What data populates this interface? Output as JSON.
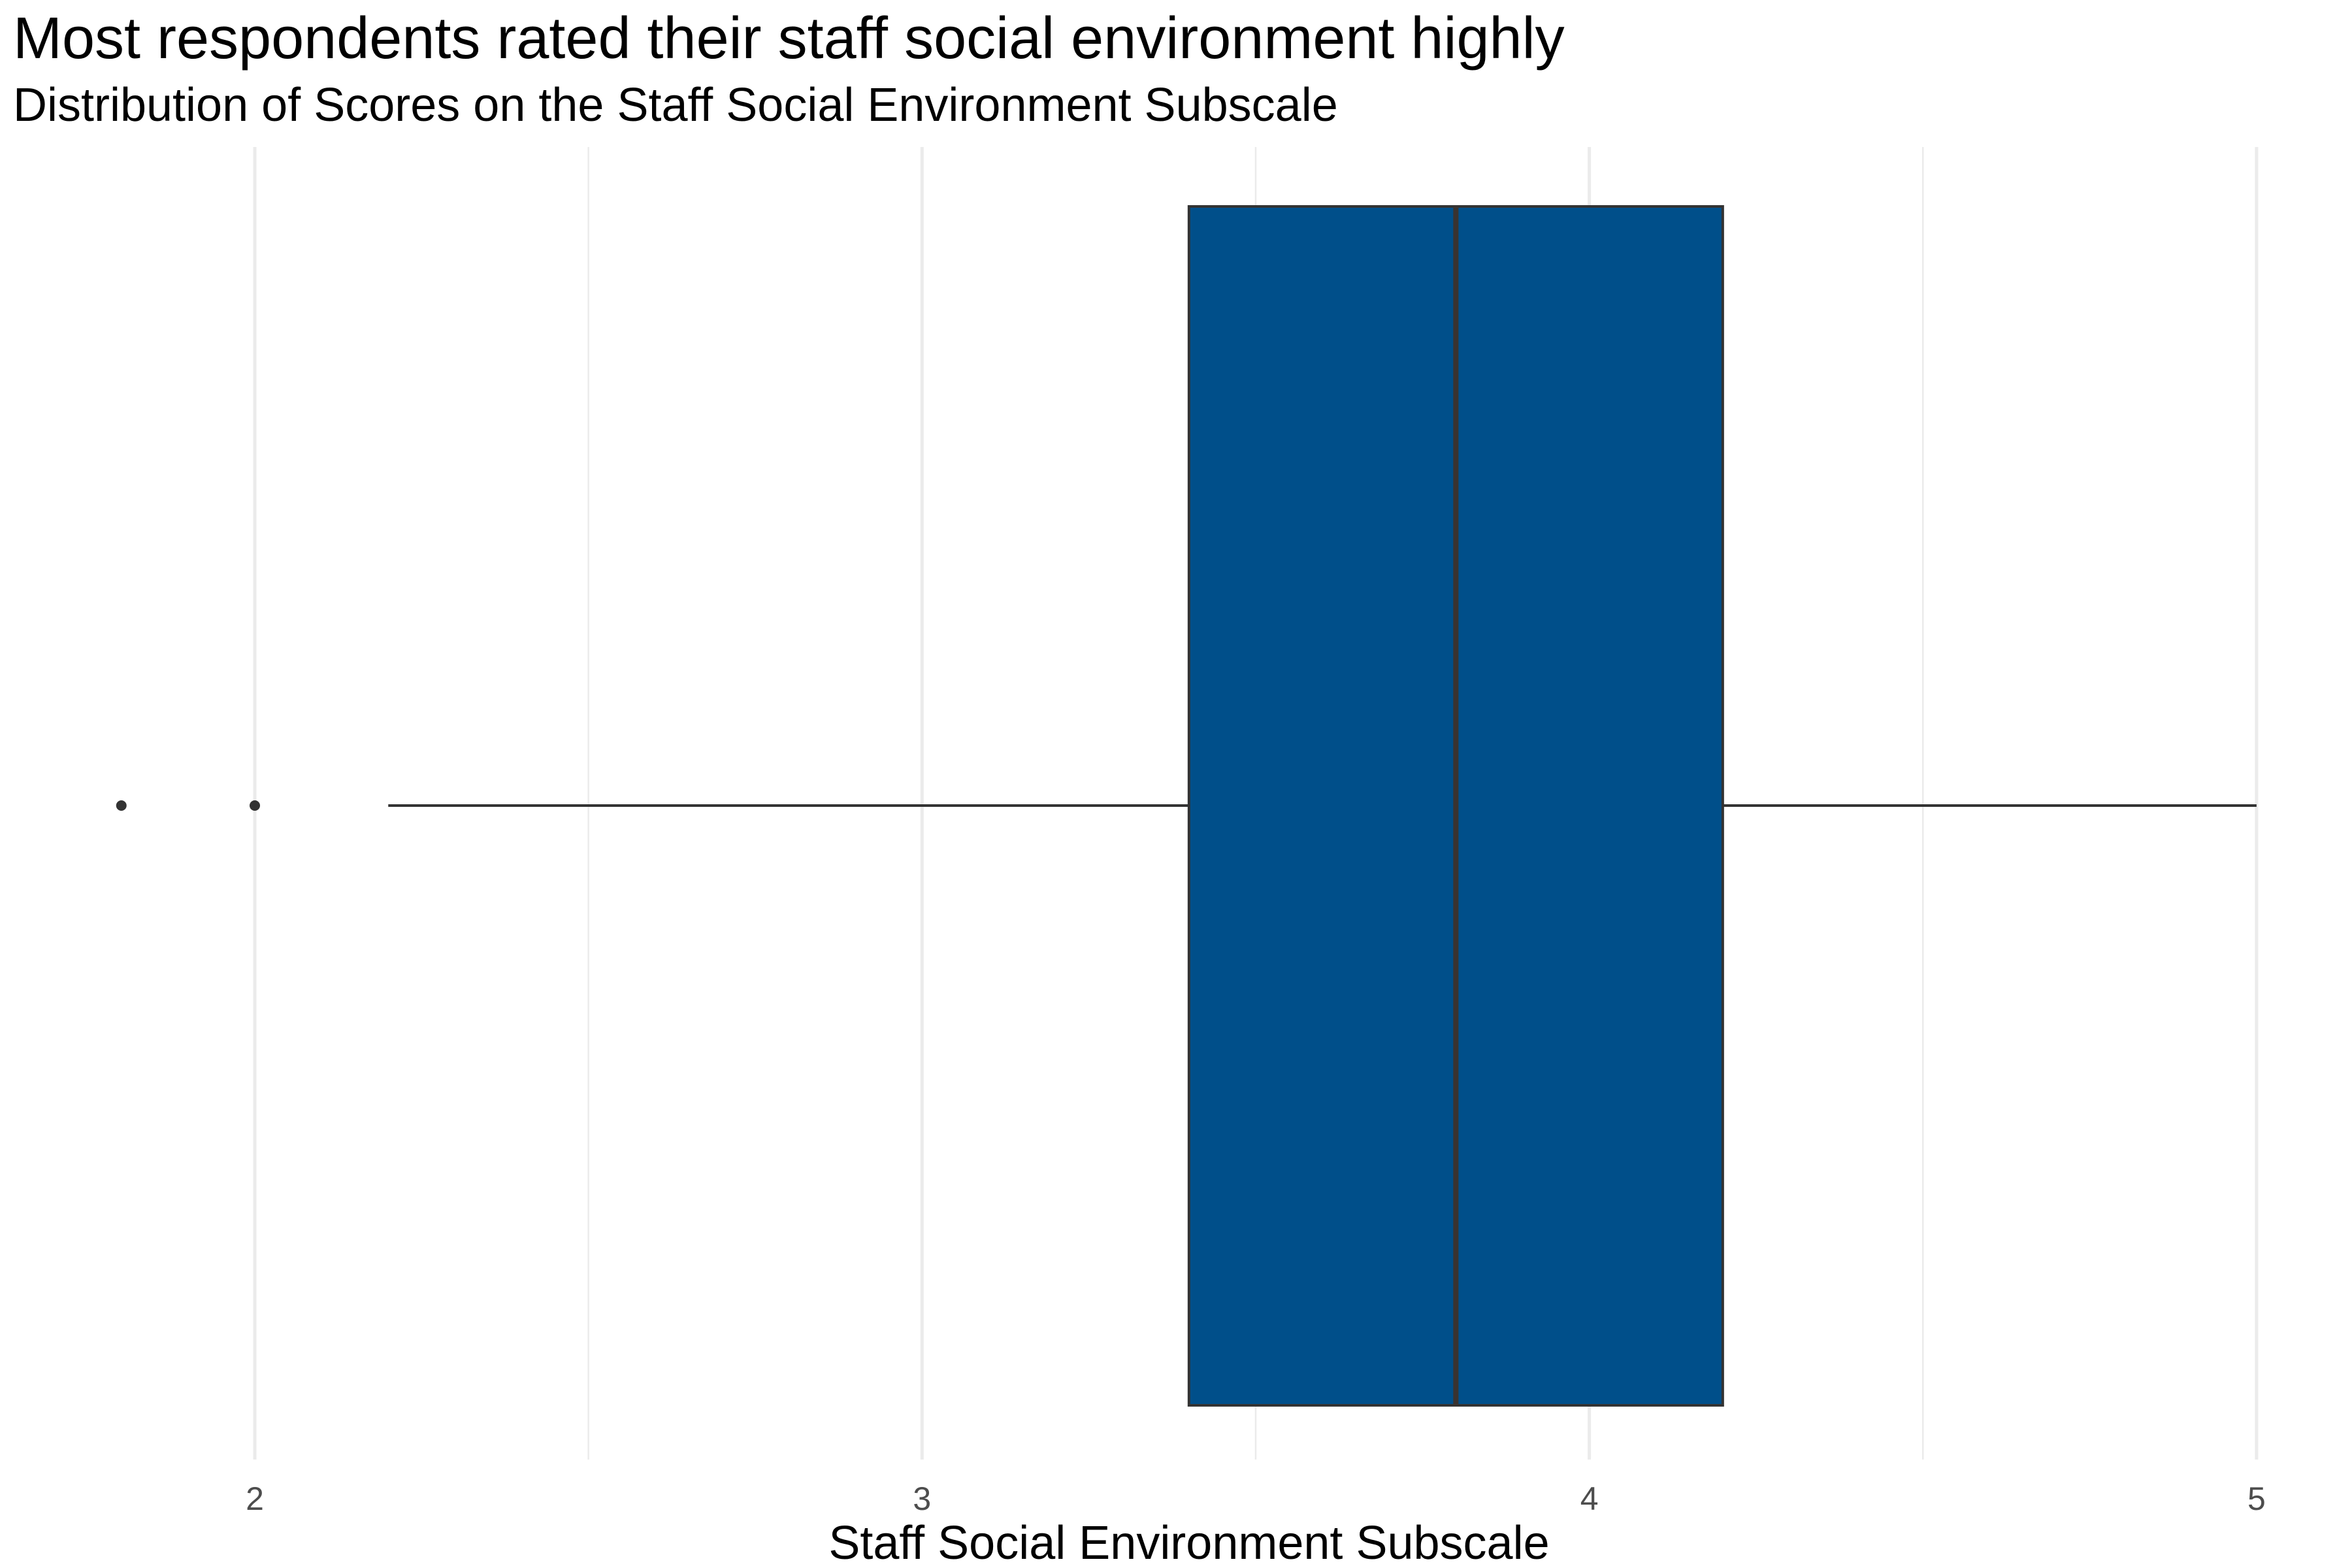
{
  "chart_data": {
    "type": "boxplot",
    "title": "Most respondents rated their staff social environment highly",
    "subtitle": "Distribution of Scores on the Staff Social Environment Subscale",
    "xlabel": "Staff Social Environment Subscale",
    "ylabel": "",
    "orientation": "horizontal",
    "x_ticks": [
      "2",
      "3",
      "4",
      "5"
    ],
    "xlim": [
      1.64,
      5.16
    ],
    "grid": true,
    "box": {
      "whisker_low": 2.2,
      "q1": 3.4,
      "median": 3.8,
      "q3": 4.2,
      "whisker_high": 5.0,
      "outliers": [
        1.8,
        2.0
      ]
    },
    "colors": {
      "box_fill": "#004F8A",
      "outline": "#333333",
      "grid": "#EBEBEB",
      "background": "#FFFFFF"
    }
  }
}
